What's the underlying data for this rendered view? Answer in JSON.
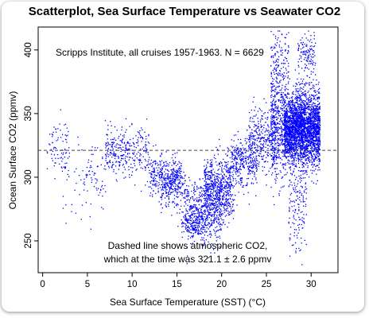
{
  "chart_data": {
    "type": "scatter",
    "title": "Scatterplot, Sea Surface Temperature vs Seawater CO2",
    "xlabel": "Sea Surface Temperature (SST) (°C)",
    "ylabel": "Ocean Surface CO2 (ppmv)",
    "xlim": [
      -0.5,
      33
    ],
    "ylim": [
      225,
      418
    ],
    "xticks": [
      0,
      5,
      10,
      15,
      20,
      25,
      30
    ],
    "yticks": [
      250,
      300,
      350,
      400
    ],
    "grid": false,
    "point_color": "#0000ff",
    "reference_line": {
      "y": 321.1,
      "style": "dashed",
      "color": "#444444"
    },
    "annotations": [
      "Scripps Institute, all cruises 1957-1963. N = 6629",
      "Dashed line shows atmospheric CO2,",
      "which at the time was 321.1 ± 2.6 ppmv"
    ],
    "n_points": 6629,
    "clusters": [
      {
        "x_range": [
          0.5,
          3.0
        ],
        "y_mean": 323,
        "y_sd": 10,
        "fraction": 0.012
      },
      {
        "x_range": [
          2.0,
          4.5
        ],
        "y_mean": 300,
        "y_sd": 25,
        "fraction": 0.004
      },
      {
        "x_range": [
          7.0,
          9.5
        ],
        "y_mean": 320,
        "y_sd": 9,
        "fraction": 0.028
      },
      {
        "x_range": [
          9.5,
          12.0
        ],
        "y_mean": 318,
        "y_sd": 10,
        "fraction": 0.02
      },
      {
        "x_range": [
          12.0,
          15.5
        ],
        "y_mean": 300,
        "y_sd": 8,
        "fraction": 0.05
      },
      {
        "x_range": [
          13.0,
          16.0
        ],
        "y_mean": 290,
        "y_sd": 10,
        "fraction": 0.025
      },
      {
        "x_range": [
          15.5,
          18.5
        ],
        "y_mean": 262,
        "y_sd": 5,
        "fraction": 0.02
      },
      {
        "x_range": [
          16.0,
          20.0
        ],
        "y_mean": 272,
        "y_sd": 12,
        "fraction": 0.08
      },
      {
        "x_range": [
          18.0,
          21.0
        ],
        "y_mean": 292,
        "y_sd": 12,
        "fraction": 0.08
      },
      {
        "x_range": [
          21.0,
          24.0
        ],
        "y_mean": 312,
        "y_sd": 10,
        "fraction": 0.05
      },
      {
        "x_range": [
          23.0,
          26.0
        ],
        "y_mean": 330,
        "y_sd": 12,
        "fraction": 0.05
      },
      {
        "x_range": [
          25.5,
          27.0
        ],
        "y_mean": 340,
        "y_sd": 22,
        "fraction": 0.07
      },
      {
        "x_range": [
          27.0,
          31.0
        ],
        "y_mean": 338,
        "y_sd": 14,
        "fraction": 0.42
      },
      {
        "x_range": [
          27.5,
          29.5
        ],
        "y_mean": 285,
        "y_sd": 25,
        "fraction": 0.03
      },
      {
        "x_range": [
          25.5,
          27.5
        ],
        "y_mean": 390,
        "y_sd": 12,
        "fraction": 0.02
      },
      {
        "x_range": [
          28.5,
          30.5
        ],
        "y_mean": 395,
        "y_sd": 12,
        "fraction": 0.02
      },
      {
        "x_range": [
          20.0,
          21.5
        ],
        "y_mean": 278,
        "y_sd": 8,
        "fraction": 0.01
      },
      {
        "x_range": [
          4.5,
          7.0
        ],
        "y_mean": 300,
        "y_sd": 12,
        "fraction": 0.01
      }
    ]
  }
}
